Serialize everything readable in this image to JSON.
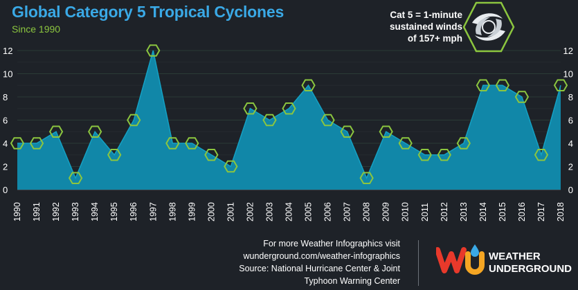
{
  "header": {
    "title": "Global Category 5 Tropical Cyclones",
    "subtitle": "Since 1990"
  },
  "note": {
    "lines": [
      "Cat 5 = 1-minute",
      "sustained winds",
      "of 157+ mph"
    ],
    "icon": "hurricane-icon"
  },
  "footer": {
    "lines": [
      "For more Weather Infographics visit",
      "wunderground.com/weather-infographics",
      "Source: National Hurricane Center & Joint",
      "Typhoon Warning Center"
    ]
  },
  "logo": {
    "line1": "WEATHER",
    "line2": "UNDERGROUND",
    "icon": "weather-underground-logo"
  },
  "colors": {
    "background": "#1e2228",
    "title": "#3aa9e6",
    "accent_green": "#8cc63f",
    "area_fill": "#1187a8",
    "area_line": "#14a1c4",
    "grid": "#2b3b36"
  },
  "chart_data": {
    "type": "area",
    "title": "Global Category 5 Tropical Cyclones",
    "subtitle": "Since 1990",
    "xlabel": "",
    "ylabel": "",
    "ylim": [
      0,
      12
    ],
    "yticks": [
      0,
      2,
      4,
      6,
      8,
      10,
      12
    ],
    "grid": true,
    "x": [
      "1990",
      "1991",
      "1992",
      "1993",
      "1994",
      "1995",
      "1996",
      "1997",
      "1998",
      "1999",
      "2000",
      "2001",
      "2002",
      "2003",
      "2004",
      "2005",
      "2006",
      "2007",
      "2008",
      "2009",
      "2010",
      "2011",
      "2012",
      "2013",
      "2014",
      "2015",
      "2016",
      "2017",
      "2018"
    ],
    "series": [
      {
        "name": "Category 5 tropical cyclones",
        "values": [
          4,
          4,
          5,
          1,
          5,
          3,
          6,
          12,
          4,
          4,
          3,
          2,
          7,
          6,
          7,
          9,
          6,
          5,
          1,
          5,
          4,
          3,
          3,
          4,
          9,
          9,
          8,
          3,
          9
        ]
      }
    ]
  }
}
